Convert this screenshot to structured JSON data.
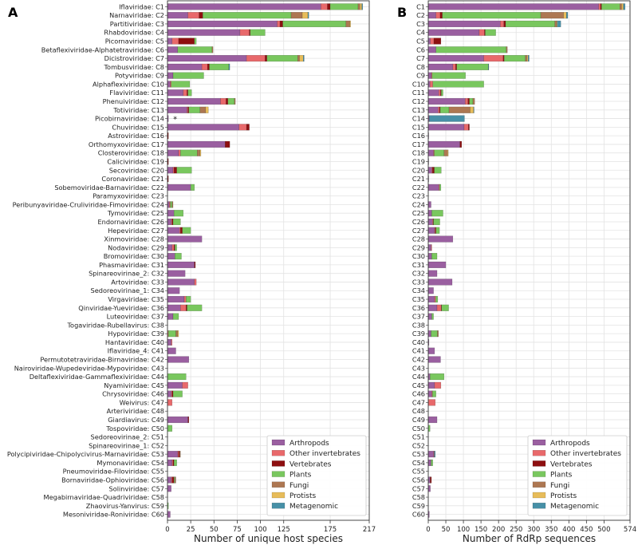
{
  "panels": [
    {
      "panel_label": "A",
      "xlabel": "Number of unique host species",
      "xlim": [
        0,
        217
      ],
      "xticks": [
        0,
        25,
        50,
        75,
        100,
        125,
        175,
        217
      ],
      "note": "*",
      "note_row": 14
    },
    {
      "panel_label": "B",
      "xlabel": "Number of RdRp sequences",
      "xlim": [
        0,
        574
      ],
      "xticks": [
        0,
        50,
        100,
        150,
        200,
        250,
        300,
        350,
        400,
        450,
        500,
        574
      ]
    }
  ],
  "legend": {
    "title": "",
    "location": "lower-right",
    "entries": [
      {
        "name": "Arthropods",
        "color": "#9A5FA0"
      },
      {
        "name": "Other invertebrates",
        "color": "#E8696B"
      },
      {
        "name": "Vertebrates",
        "color": "#8E0F10"
      },
      {
        "name": "Plants",
        "color": "#79C75E"
      },
      {
        "name": "Fungi",
        "color": "#AD7752"
      },
      {
        "name": "Protists",
        "color": "#E7BC5A"
      },
      {
        "name": "Metagenomic",
        "color": "#4790A7"
      }
    ]
  },
  "chart_data": [
    {
      "type": "bar",
      "orientation": "horizontal",
      "stacked": true,
      "title": "A",
      "xlabel": "Number of unique host species",
      "ylabel": "",
      "xlim": [
        0,
        217
      ],
      "grid": true,
      "categories": [
        "Iflaviridae: C1",
        "Narnaviridae: C2",
        "Partitiviridae: C3",
        "Rhabdoviridae: C4",
        "Picornaviridae: C5",
        "Betaflexiviridae-Alphatetraviridae: C6",
        "Dicistroviridae: C7",
        "Tombusviridae: C8",
        "Potyviridae: C9",
        "Alphaflexiviridae: C10",
        "Flaviviridae: C11",
        "Phenuiviridae: C12",
        "Totiviridae: C13",
        "Picobirnaviridae: C14",
        "Chuviridae: C15",
        "Astroviridae: C16",
        "Orthomyxoviridae: C17",
        "Closteroviridae: C18",
        "Caliciviridae: C19",
        "Secoviridae: C20",
        "Coronaviridae: C21",
        "Sobemoviridae-Barnaviridae: C22",
        "Paramyxoviridae: C23",
        "Peribunyaviridae-Cruliviridae-Fimoviridae: C24",
        "Tymoviridae: C25",
        "Endornaviridae: C26",
        "Hepeviridae: C27",
        "Xinmoviridae: C28",
        "Nodaviridae: C29",
        "Bromoviridae: C30",
        "Phasmaviridae: C31",
        "Spinareovirinae_2: C32",
        "Artoviridae: C33",
        "Sedoreovirinae_1: C34",
        "Virgaviridae: C35",
        "Qinviridae-Yueviridae: C36",
        "Luteoviridae: C37",
        "Togaviridae-Rubellavirus: C38",
        "Hypoviridae: C39",
        "Hantaviridae: C40",
        "Iflaviridae_4: C41",
        "Permutotetraviridae-Birnaviridae: C42",
        "Nairoviridae-Wupedeviridae-Mypoviridae: C43",
        "Deltaflexiviridae-Gammaflexiviridae: C44",
        "Nyamiviridae: C45",
        "Chrysoviridae: C46",
        "Weivirus: C47",
        "Arteriviridae: C48",
        "Giardiavirus: C49",
        "Tospoviridae: C50",
        "Sedoreovirinae_2: C51",
        "Spinareovirinae_1: C52",
        "Polycipiviridae-Chipolycivirus-Marnaviridae: C53",
        "Mymonaviridae: C54",
        "Pneumoviridae-Filoviridae: C55",
        "Bornaviridae-Ophioviridae: C56",
        "Solinviridae: C57",
        "Megabirnaviridae-Quadriviridae: C58",
        "Zhaovirus-Yanvirus: C59",
        "Mesoniviridae-Roniviridae: C60"
      ],
      "series": [
        {
          "name": "Arthropods",
          "color": "#9A5FA0",
          "values": [
            165,
            22,
            118,
            78,
            5,
            11,
            85,
            37,
            6,
            3,
            17,
            57,
            21,
            1,
            77,
            0,
            62,
            12,
            0,
            6,
            0,
            25,
            0,
            2,
            7,
            4,
            13,
            37,
            5,
            8,
            29,
            19,
            29,
            13,
            18,
            14,
            6,
            0,
            0,
            4,
            9,
            23,
            0,
            0,
            16,
            4,
            0,
            0,
            22,
            0,
            0,
            0,
            11,
            5,
            0,
            4,
            4,
            0,
            0,
            3
          ]
        },
        {
          "name": "Other invertebrates",
          "color": "#E8696B",
          "values": [
            7,
            12,
            3,
            10,
            7,
            0,
            20,
            6,
            0,
            1,
            4,
            6,
            1,
            0,
            8,
            0,
            0,
            2,
            0,
            1,
            0,
            0,
            0,
            1,
            0,
            1,
            1,
            0,
            2,
            0,
            0,
            0,
            2,
            0,
            2,
            6,
            0,
            0,
            1,
            1,
            0,
            0,
            0,
            0,
            6,
            1,
            5,
            0,
            0,
            0,
            0,
            0,
            1,
            1,
            0,
            1,
            0,
            0,
            0,
            0
          ]
        },
        {
          "name": "Vertebrates",
          "color": "#8E0F10",
          "values": [
            3,
            4,
            3,
            1,
            17,
            0,
            2,
            2,
            0,
            0,
            1,
            2,
            1,
            0,
            3,
            1,
            5,
            0,
            1,
            3,
            1,
            0,
            0,
            0,
            0,
            1,
            2,
            0,
            1,
            0,
            1,
            0,
            0,
            0,
            0,
            1,
            0,
            0,
            0,
            0,
            0,
            0,
            0,
            0,
            0,
            1,
            0,
            0,
            1,
            0,
            0,
            0,
            1,
            1,
            0,
            2,
            0,
            0,
            0,
            0
          ]
        },
        {
          "name": "Plants",
          "color": "#79C75E",
          "values": [
            30,
            95,
            68,
            16,
            2,
            37,
            33,
            21,
            33,
            20,
            4,
            7,
            12,
            0,
            0,
            0,
            0,
            18,
            0,
            16,
            0,
            4,
            0,
            2,
            10,
            8,
            9,
            0,
            2,
            7,
            0,
            0,
            0,
            0,
            5,
            16,
            6,
            0,
            8,
            0,
            0,
            0,
            0,
            20,
            0,
            10,
            0,
            0,
            0,
            5,
            0,
            0,
            0,
            3,
            0,
            1,
            0,
            0,
            1,
            0
          ]
        },
        {
          "name": "Fungi",
          "color": "#AD7752",
          "values": [
            2,
            12,
            4,
            0,
            0,
            1,
            2,
            0,
            0,
            0,
            0,
            1,
            6,
            0,
            0,
            0,
            0,
            3,
            0,
            0,
            0,
            0,
            0,
            1,
            0,
            0,
            0,
            0,
            0,
            0,
            0,
            0,
            0,
            0,
            0,
            0,
            0,
            0,
            2,
            0,
            0,
            0,
            0,
            0,
            0,
            0,
            0,
            0,
            0,
            0,
            0,
            0,
            1,
            0,
            0,
            1,
            0,
            0,
            0,
            0
          ]
        },
        {
          "name": "Protists",
          "color": "#E7BC5A",
          "values": [
            2,
            6,
            1,
            0,
            0,
            0,
            4,
            0,
            0,
            0,
            0,
            0,
            3,
            0,
            0,
            0,
            0,
            1,
            0,
            0,
            0,
            0,
            0,
            0,
            0,
            0,
            0,
            0,
            0,
            0,
            0,
            0,
            0,
            0,
            0,
            0,
            0,
            0,
            1,
            0,
            0,
            0,
            0,
            0,
            0,
            0,
            0,
            0,
            0,
            0,
            0,
            0,
            0,
            0,
            0,
            0,
            0,
            0,
            0,
            0
          ]
        },
        {
          "name": "Metagenomic",
          "color": "#4790A7",
          "values": [
            1,
            1,
            0,
            0,
            0,
            0,
            1,
            1,
            0,
            0,
            0,
            0,
            0,
            0,
            0,
            0,
            0,
            0,
            0,
            0,
            0,
            0,
            0,
            0,
            0,
            0,
            0,
            0,
            0,
            0,
            0,
            0,
            0,
            0,
            0,
            0,
            0,
            0,
            0,
            0,
            0,
            0,
            0,
            0,
            0,
            0,
            0,
            0,
            0,
            0,
            0,
            0,
            0,
            0,
            0,
            0,
            0,
            0,
            0,
            0
          ]
        }
      ]
    },
    {
      "type": "bar",
      "orientation": "horizontal",
      "stacked": true,
      "title": "B",
      "xlabel": "Number of RdRp sequences",
      "ylabel": "",
      "xlim": [
        0,
        574
      ],
      "grid": true,
      "categories": [
        "C1",
        "C2",
        "C3",
        "C4",
        "C5",
        "C6",
        "C7",
        "C8",
        "C9",
        "C10",
        "C11",
        "C12",
        "C13",
        "C14",
        "C15",
        "C16",
        "C17",
        "C18",
        "C19",
        "C20",
        "C21",
        "C22",
        "C23",
        "C24",
        "C25",
        "C26",
        "C27",
        "C28",
        "C29",
        "C30",
        "C31",
        "C32",
        "C33",
        "C34",
        "C35",
        "C36",
        "C37",
        "C38",
        "C39",
        "C40",
        "C41",
        "C42",
        "C43",
        "C44",
        "C45",
        "C46",
        "C47",
        "C48",
        "C49",
        "C50",
        "C51",
        "C52",
        "C53",
        "C54",
        "C55",
        "C56",
        "C57",
        "C58",
        "C59",
        "C60"
      ],
      "series": [
        {
          "name": "Arthropods",
          "color": "#9A5FA0",
          "values": [
            485,
            22,
            205,
            145,
            6,
            22,
            158,
            70,
            9,
            5,
            30,
            105,
            28,
            3,
            102,
            1,
            90,
            15,
            1,
            10,
            1,
            30,
            0,
            8,
            10,
            12,
            18,
            70,
            8,
            10,
            50,
            25,
            68,
            15,
            18,
            25,
            10,
            0,
            8,
            2,
            18,
            35,
            0,
            5,
            18,
            10,
            0,
            0,
            25,
            0,
            0,
            0,
            15,
            8,
            0,
            5,
            6,
            0,
            0,
            3
          ]
        },
        {
          "name": "Other invertebrates",
          "color": "#E8696B",
          "values": [
            5,
            12,
            10,
            15,
            10,
            0,
            55,
            8,
            2,
            8,
            5,
            8,
            4,
            0,
            12,
            0,
            0,
            2,
            0,
            2,
            0,
            2,
            0,
            0,
            0,
            2,
            2,
            0,
            2,
            0,
            0,
            0,
            0,
            0,
            3,
            12,
            0,
            0,
            0,
            0,
            0,
            0,
            0,
            0,
            18,
            2,
            20,
            0,
            0,
            0,
            0,
            0,
            2,
            0,
            0,
            1,
            0,
            0,
            0,
            0
          ]
        },
        {
          "name": "Vertebrates",
          "color": "#8E0F10",
          "values": [
            3,
            6,
            5,
            2,
            20,
            0,
            3,
            3,
            0,
            0,
            2,
            4,
            2,
            0,
            3,
            0,
            5,
            0,
            0,
            5,
            0,
            0,
            0,
            0,
            0,
            1,
            2,
            0,
            0,
            0,
            0,
            0,
            0,
            0,
            0,
            1,
            0,
            0,
            0,
            0,
            0,
            0,
            0,
            0,
            0,
            0,
            0,
            0,
            0,
            0,
            0,
            0,
            0,
            0,
            0,
            3,
            0,
            0,
            0,
            0
          ]
        },
        {
          "name": "Plants",
          "color": "#79C75E",
          "values": [
            52,
            280,
            140,
            30,
            0,
            200,
            60,
            90,
            95,
            145,
            5,
            10,
            25,
            0,
            0,
            0,
            0,
            28,
            0,
            20,
            0,
            4,
            0,
            0,
            32,
            18,
            10,
            0,
            0,
            15,
            0,
            0,
            0,
            0,
            6,
            20,
            5,
            0,
            18,
            0,
            0,
            0,
            0,
            40,
            0,
            10,
            0,
            0,
            0,
            5,
            0,
            0,
            0,
            5,
            0,
            0,
            0,
            0,
            0,
            0
          ]
        },
        {
          "name": "Fungi",
          "color": "#AD7752",
          "values": [
            5,
            65,
            5,
            0,
            0,
            3,
            5,
            0,
            0,
            0,
            0,
            5,
            60,
            0,
            0,
            0,
            0,
            10,
            0,
            0,
            0,
            0,
            0,
            0,
            0,
            0,
            0,
            0,
            0,
            0,
            0,
            0,
            0,
            0,
            0,
            0,
            0,
            0,
            3,
            0,
            0,
            0,
            0,
            0,
            0,
            0,
            0,
            0,
            0,
            0,
            0,
            0,
            0,
            0,
            0,
            0,
            0,
            0,
            0,
            0
          ]
        },
        {
          "name": "Protists",
          "color": "#E7BC5A",
          "values": [
            5,
            8,
            2,
            0,
            0,
            0,
            3,
            0,
            0,
            0,
            0,
            0,
            10,
            0,
            0,
            0,
            0,
            2,
            0,
            0,
            0,
            0,
            0,
            0,
            0,
            0,
            0,
            0,
            0,
            0,
            0,
            0,
            0,
            0,
            0,
            0,
            0,
            0,
            0,
            0,
            0,
            0,
            0,
            0,
            0,
            0,
            0,
            0,
            0,
            0,
            0,
            0,
            0,
            0,
            0,
            0,
            0,
            0,
            0,
            0
          ]
        },
        {
          "name": "Metagenomic",
          "color": "#4790A7",
          "values": [
            5,
            4,
            10,
            0,
            0,
            0,
            3,
            1,
            0,
            0,
            0,
            0,
            1,
            100,
            0,
            0,
            0,
            0,
            0,
            0,
            0,
            0,
            0,
            0,
            0,
            0,
            0,
            0,
            0,
            0,
            0,
            0,
            0,
            0,
            0,
            0,
            0,
            0,
            0,
            0,
            0,
            0,
            0,
            0,
            0,
            0,
            0,
            0,
            0,
            0,
            0,
            0,
            3,
            0,
            0,
            0,
            0,
            0,
            0,
            0
          ]
        }
      ]
    }
  ]
}
